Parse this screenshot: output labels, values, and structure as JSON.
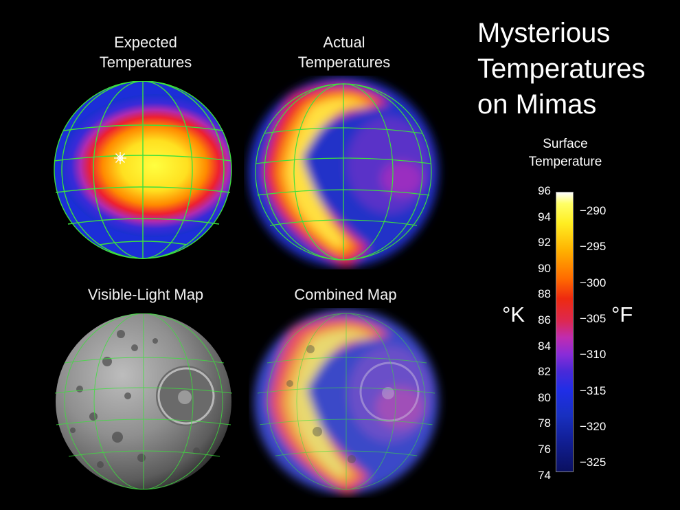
{
  "title": [
    "Mysterious",
    "Temperatures",
    "on Mimas"
  ],
  "panels": {
    "expected": [
      "Expected",
      "Temperatures"
    ],
    "actual": [
      "Actual",
      "Temperatures"
    ],
    "visible": "Visible-Light Map",
    "combined": "Combined Map"
  },
  "scale": {
    "title": [
      "Surface",
      "Temperature"
    ],
    "unit_k": "°K",
    "unit_f": "°F",
    "kelvin_ticks": [
      "96",
      "94",
      "92",
      "90",
      "88",
      "86",
      "84",
      "82",
      "80",
      "78",
      "76",
      "74"
    ],
    "fahrenheit_ticks": [
      "−290",
      "−295",
      "−300",
      "−305",
      "−310",
      "−315",
      "−320",
      "−325"
    ]
  },
  "colors": {
    "grid": "#3de03d",
    "background": "#000000"
  },
  "icons": {
    "sun": "sun-icon"
  }
}
